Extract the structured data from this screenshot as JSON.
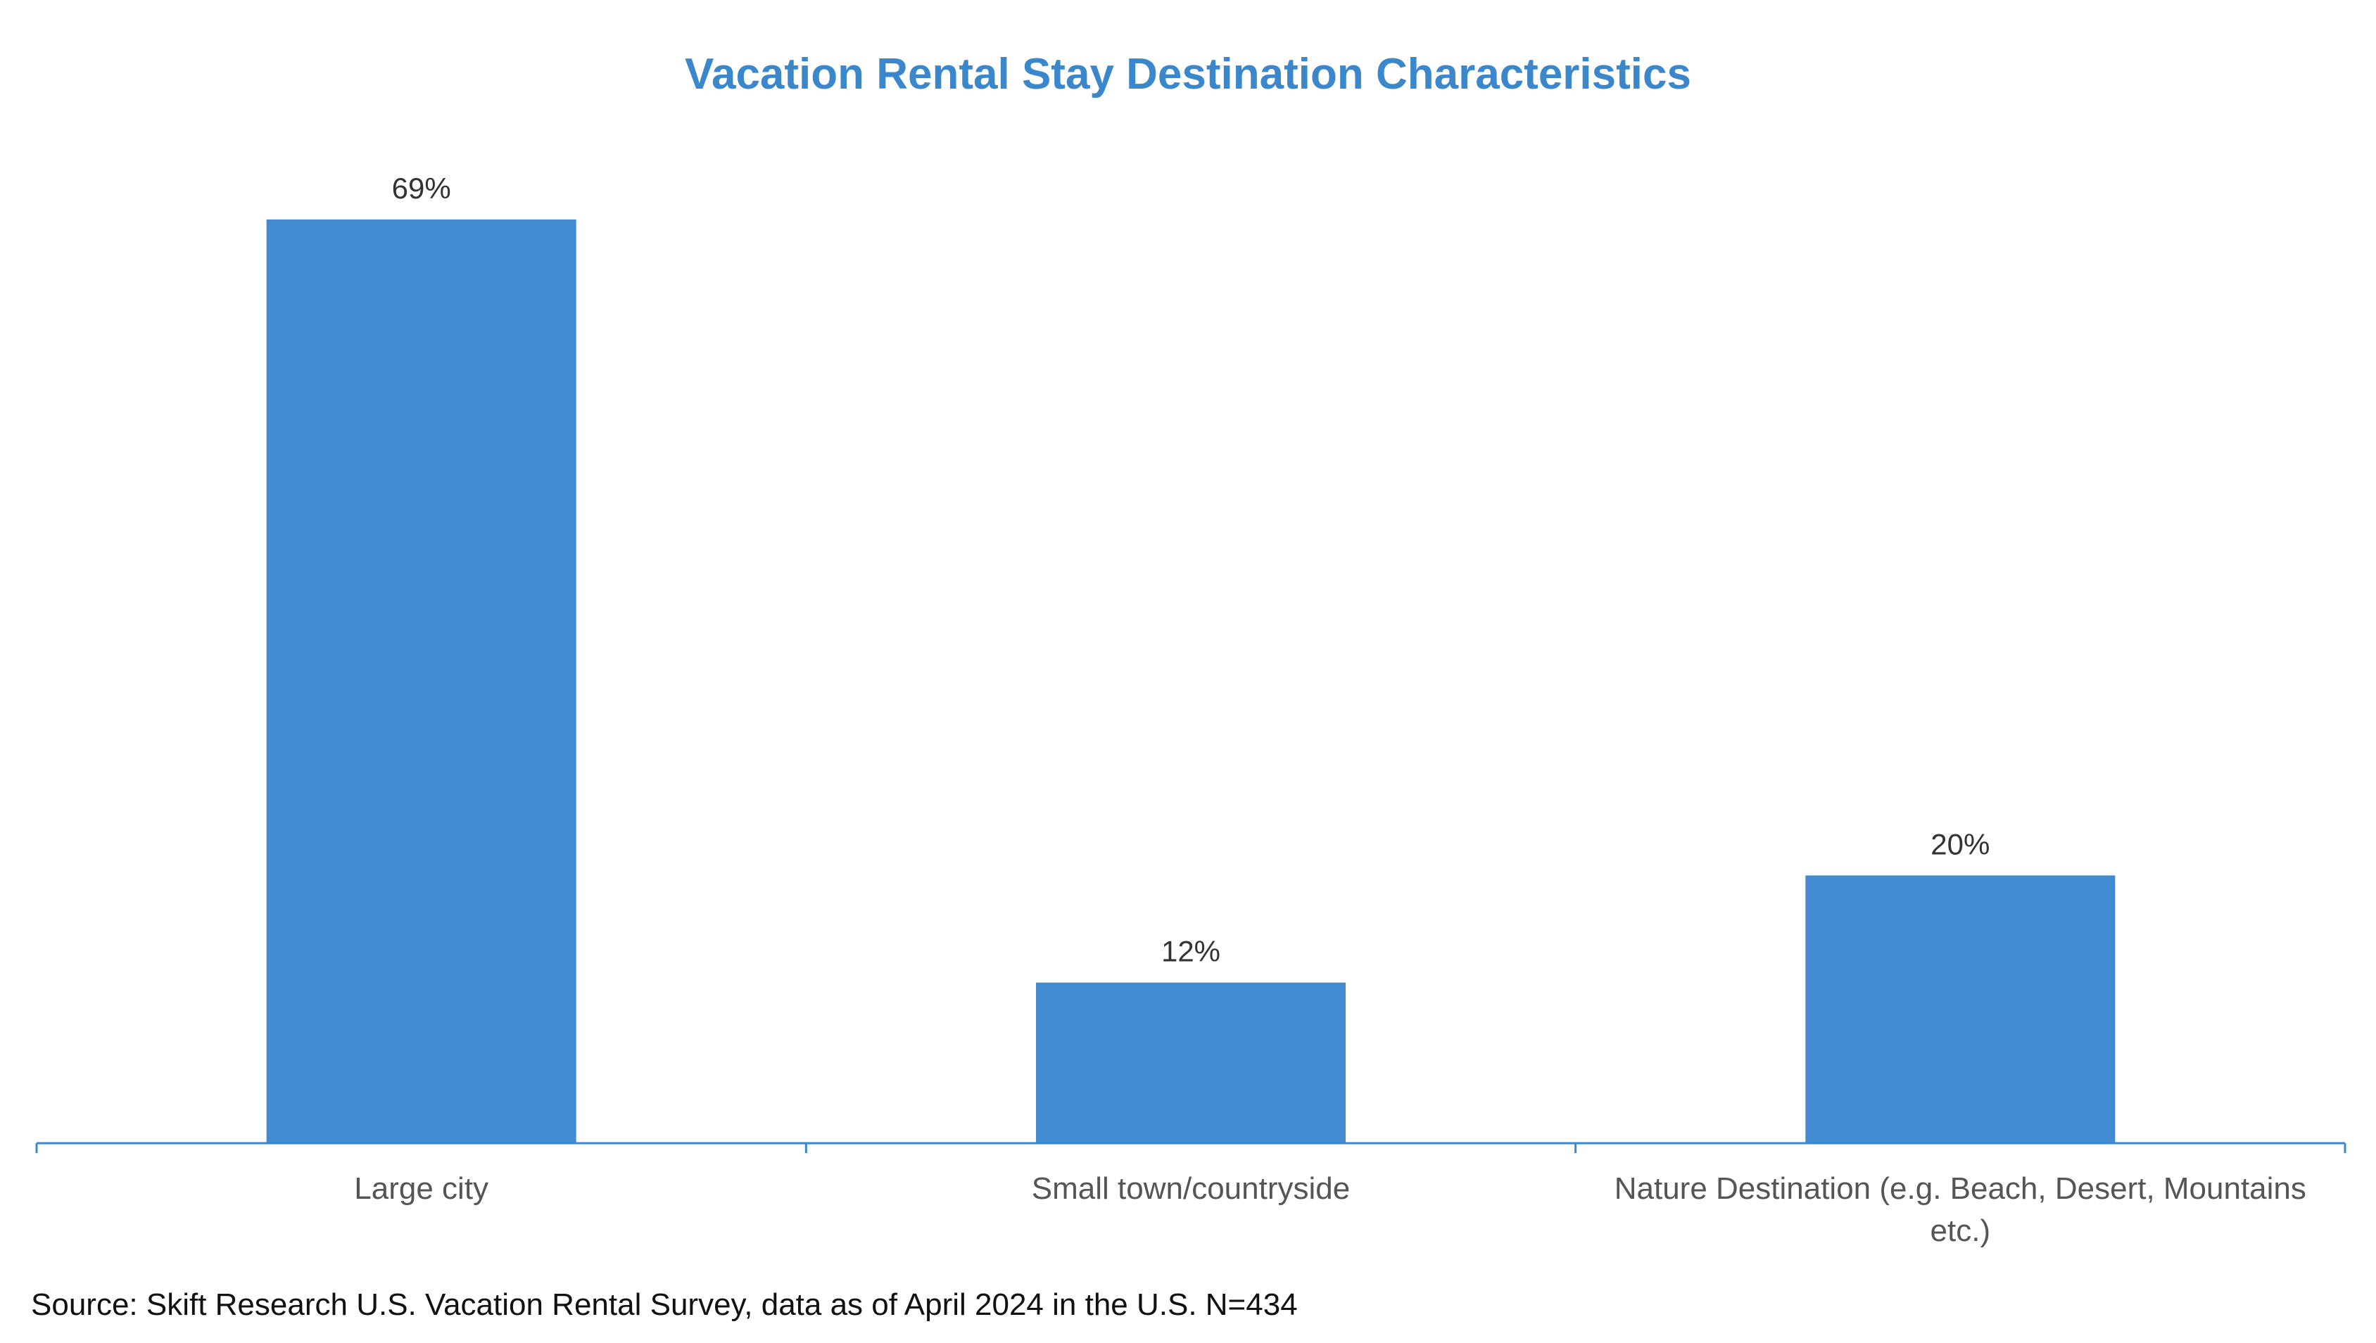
{
  "chart_data": {
    "type": "bar",
    "title": "Vacation Rental Stay Destination Characteristics",
    "categories": [
      [
        "Large city"
      ],
      [
        "Small town/countryside"
      ],
      [
        "Nature Destination (e.g. Beach, Desert, Mountains",
        "etc.)"
      ]
    ],
    "values": [
      69,
      12,
      20
    ],
    "value_labels": [
      "69%",
      "12%",
      "20%"
    ],
    "unit": "%",
    "ylim": [
      0,
      69
    ],
    "grid": false,
    "legend": "none",
    "bar_color": "#428bd0",
    "axis_color": "#3b87cc",
    "title_color": "#3b87cc",
    "label_color": "#555555"
  },
  "source": "Source: Skift Research U.S. Vacation Rental Survey, data as of April 2024 in the U.S. N=434"
}
